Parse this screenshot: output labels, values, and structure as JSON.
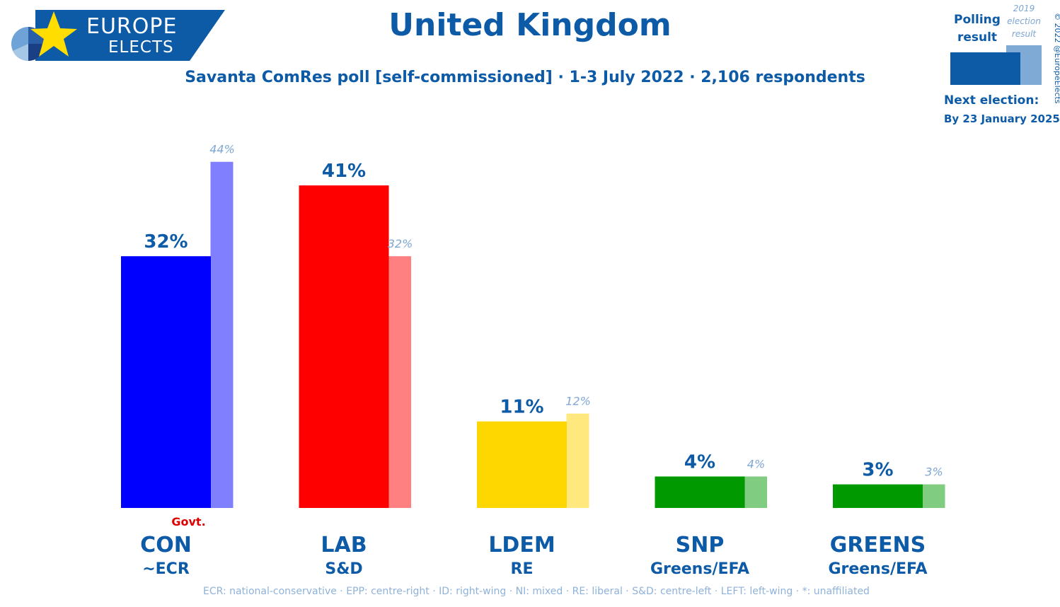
{
  "logo": {
    "line1": "EUROPE",
    "line2": "ELECTS"
  },
  "title": "United Kingdom",
  "subtitle": "Savanta ComRes poll [self-commissioned] · 1-3 July 2022 · 2,106 respondents",
  "legend": {
    "poll_label": "Polling result",
    "election_label": "2019 election result",
    "poll_color": "#0d5aa7",
    "election_color": "#80aad6"
  },
  "copyright": "© 2022 @EuropeElects",
  "next_election": {
    "label": "Next election:",
    "date": "By 23 January 2025"
  },
  "footer": "ECR: national-conservative · EPP: centre-right · ID: right-wing · NI: mixed · RE: liberal · S&D: centre-left · LEFT: left-wing · *: unaffiliated",
  "chart_data": {
    "type": "bar",
    "categories": [
      "CON",
      "LAB",
      "LDEM",
      "SNP",
      "GREENS"
    ],
    "groups": [
      "~ECR",
      "S&D",
      "RE",
      "Greens/EFA",
      "Greens/EFA"
    ],
    "series": [
      {
        "name": "Polling result",
        "values": [
          32,
          41,
          11,
          4,
          3
        ],
        "labels": [
          "32%",
          "41%",
          "11%",
          "4%",
          "3%"
        ]
      },
      {
        "name": "2019 election result",
        "values": [
          44,
          32,
          12,
          4,
          3
        ],
        "labels": [
          "44%",
          "32%",
          "12%",
          "4%",
          "3%"
        ]
      }
    ],
    "colors": {
      "poll": [
        "#0000ff",
        "#ff0000",
        "#ffd700",
        "#009900",
        "#009900"
      ],
      "election": [
        "#8080ff",
        "#ff8080",
        "#ffe97f",
        "#80cc80",
        "#80cc80"
      ]
    },
    "govt_label": "Govt.",
    "govt_index": 0,
    "ylim": [
      0,
      44
    ]
  }
}
